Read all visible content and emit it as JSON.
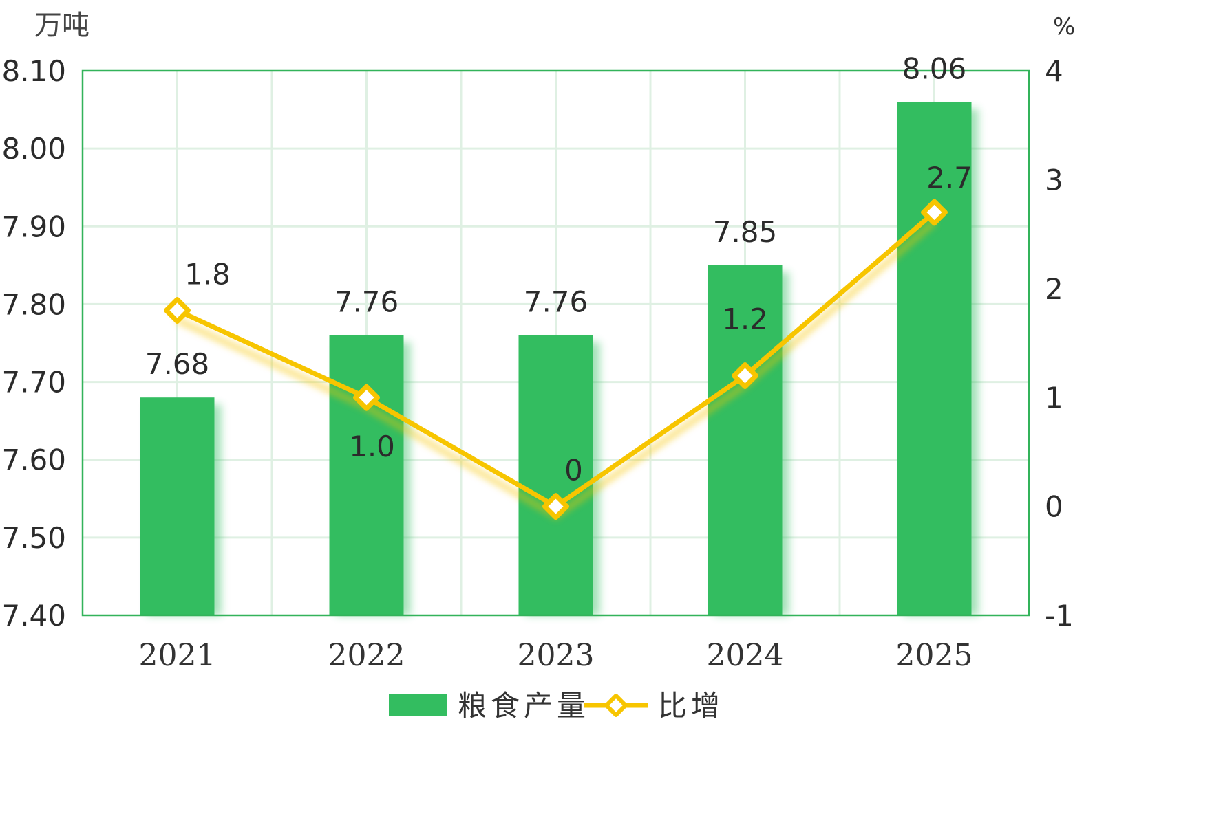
{
  "chart_data": {
    "type": "bar",
    "categories": [
      "2021",
      "2022",
      "2023",
      "2024",
      "2025"
    ],
    "series": [
      {
        "name": "粮食产量",
        "type": "bar",
        "axis": "left",
        "values": [
          7.68,
          7.76,
          7.76,
          7.85,
          8.06
        ],
        "labels": [
          "7.68",
          "7.76",
          "7.76",
          "7.85",
          "8.06"
        ]
      },
      {
        "name": "比增",
        "type": "line",
        "axis": "right",
        "values": [
          1.8,
          1.0,
          0,
          1.2,
          2.7
        ],
        "labels": [
          "1.8",
          "1.0",
          "0",
          "1.2",
          "2.7"
        ]
      }
    ],
    "y_left": {
      "unit": "万吨",
      "min": 7.4,
      "max": 8.1,
      "ticks": [
        "7.40",
        "7.50",
        "7.60",
        "7.70",
        "7.80",
        "7.90",
        "8.00",
        "8.10"
      ]
    },
    "y_right": {
      "unit": "%",
      "min": -1,
      "max": 4,
      "ticks": [
        "-1",
        "0",
        "1",
        "2",
        "3",
        "4"
      ]
    },
    "grid": true,
    "legend_position": "bottom-center",
    "colors": {
      "bar": "#33bd60",
      "line": "#f7c500",
      "grid": "#dff0e3",
      "frame": "#33b35a"
    }
  }
}
